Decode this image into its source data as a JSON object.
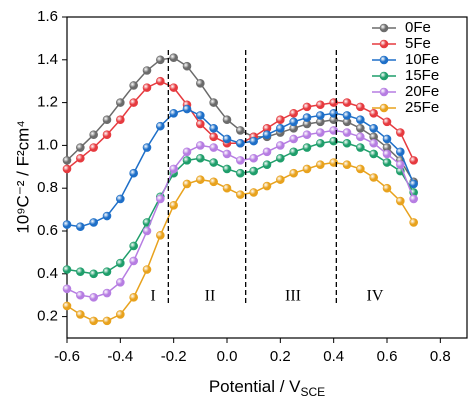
{
  "chart_data": {
    "type": "line",
    "xlabel": {
      "text": "Potential / V",
      "subscript": "SCE"
    },
    "ylabel": "10⁹C⁻² / F²cm⁴",
    "x": [
      -0.6,
      -0.55,
      -0.5,
      -0.45,
      -0.4,
      -0.35,
      -0.3,
      -0.25,
      -0.2,
      -0.15,
      -0.1,
      -0.05,
      0,
      0.05,
      0.1,
      0.15,
      0.2,
      0.25,
      0.3,
      0.35,
      0.4,
      0.45,
      0.5,
      0.55,
      0.6,
      0.65,
      0.7
    ],
    "series": [
      {
        "name": "0Fe",
        "color": "#6b6b6b",
        "values": [
          0.93,
          0.99,
          1.05,
          1.12,
          1.2,
          1.28,
          1.35,
          1.4,
          1.41,
          1.37,
          1.29,
          1.2,
          1.12,
          1.07,
          1.04,
          1.04,
          1.06,
          1.08,
          1.1,
          1.11,
          1.12,
          1.11,
          1.08,
          1.04,
          0.99,
          0.93,
          0.83
        ]
      },
      {
        "name": "5Fe",
        "color": "#e63a3f",
        "values": [
          0.89,
          0.94,
          0.99,
          1.05,
          1.12,
          1.2,
          1.27,
          1.3,
          1.27,
          1.19,
          1.1,
          1.04,
          1.01,
          1.01,
          1.04,
          1.08,
          1.12,
          1.15,
          1.18,
          1.19,
          1.2,
          1.2,
          1.18,
          1.15,
          1.11,
          1.06,
          0.93
        ]
      },
      {
        "name": "10Fe",
        "color": "#1e6fc8",
        "values": [
          0.63,
          0.62,
          0.64,
          0.67,
          0.75,
          0.87,
          0.99,
          1.09,
          1.15,
          1.17,
          1.14,
          1.08,
          1.03,
          1.01,
          1.02,
          1.05,
          1.08,
          1.11,
          1.13,
          1.14,
          1.15,
          1.14,
          1.12,
          1.08,
          1.03,
          0.97,
          0.82
        ]
      },
      {
        "name": "15Fe",
        "color": "#1f9e6b",
        "values": [
          0.42,
          0.41,
          0.4,
          0.41,
          0.45,
          0.53,
          0.64,
          0.76,
          0.87,
          0.93,
          0.94,
          0.92,
          0.89,
          0.87,
          0.88,
          0.91,
          0.94,
          0.97,
          0.99,
          1.01,
          1.02,
          1.01,
          0.99,
          0.96,
          0.92,
          0.88,
          0.78
        ]
      },
      {
        "name": "20Fe",
        "color": "#b67de2",
        "values": [
          0.33,
          0.3,
          0.29,
          0.31,
          0.36,
          0.46,
          0.6,
          0.75,
          0.89,
          0.97,
          1.0,
          0.99,
          0.96,
          0.93,
          0.94,
          0.97,
          1.0,
          1.03,
          1.05,
          1.06,
          1.07,
          1.06,
          1.04,
          1.01,
          0.96,
          0.91,
          0.75
        ]
      },
      {
        "name": "25Fe",
        "color": "#e8a21d",
        "values": [
          0.25,
          0.21,
          0.18,
          0.18,
          0.21,
          0.29,
          0.42,
          0.58,
          0.72,
          0.82,
          0.84,
          0.83,
          0.8,
          0.77,
          0.78,
          0.81,
          0.84,
          0.87,
          0.89,
          0.91,
          0.92,
          0.91,
          0.89,
          0.85,
          0.8,
          0.74,
          0.64
        ]
      }
    ],
    "vlines": [
      -0.22,
      0.07,
      0.41
    ],
    "regions": [
      "I",
      "II",
      "III",
      "IV"
    ],
    "xlim": [
      -0.6,
      0.9
    ],
    "xticks": [
      -0.6,
      -0.4,
      -0.2,
      {
        "value": 0,
        "label": "0.0"
      },
      0.2,
      0.4,
      0.6,
      0.8
    ],
    "ylim": [
      0.1,
      1.6
    ],
    "yticks": [
      0.2,
      0.4,
      0.6,
      0.8,
      {
        "value": 1,
        "label": "1.0"
      },
      1.2,
      1.4,
      1.6
    ],
    "legend": "upper right"
  }
}
